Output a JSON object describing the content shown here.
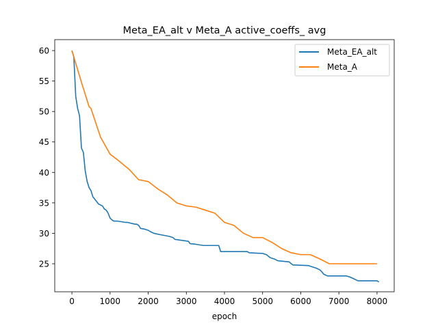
{
  "chart_data": {
    "type": "line",
    "title": "Meta_EA_alt v Meta_A active_coeffs_ avg",
    "xlabel": "epoch",
    "ylabel": "",
    "xlim": [
      -450,
      8450
    ],
    "ylim": [
      20.4,
      61.8
    ],
    "xticks": [
      0,
      1000,
      2000,
      3000,
      4000,
      5000,
      6000,
      7000,
      8000
    ],
    "yticks": [
      25,
      30,
      35,
      40,
      45,
      50,
      55,
      60
    ],
    "grid": false,
    "legend_position": "top-right",
    "series": [
      {
        "name": "Meta_EA_alt",
        "color": "#1f77b4",
        "x": [
          0,
          50,
          100,
          150,
          200,
          250,
          300,
          350,
          400,
          450,
          500,
          550,
          600,
          650,
          700,
          800,
          850,
          900,
          950,
          1000,
          1050,
          1100,
          1200,
          1400,
          1450,
          1650,
          1700,
          1750,
          1800,
          1900,
          2000,
          2050,
          2150,
          2300,
          2550,
          2650,
          2700,
          3050,
          3100,
          3250,
          3450,
          3550,
          3800,
          3850,
          3900,
          4600,
          4650,
          5000,
          5100,
          5200,
          5300,
          5400,
          5700,
          5750,
          5800,
          5850,
          6200,
          6300,
          6400,
          6500,
          6550,
          6600,
          6700,
          6750,
          7100,
          7200,
          7300,
          7400,
          7500,
          7600,
          8000,
          8050
        ],
        "y": [
          60,
          59,
          52.5,
          50.5,
          49.3,
          44,
          43.3,
          40.2,
          38.5,
          37.5,
          37,
          36,
          35.6,
          35.2,
          34.8,
          34.5,
          34,
          33.8,
          33.3,
          32.5,
          32.2,
          32,
          32,
          31.8,
          31.8,
          31.5,
          31.5,
          31.3,
          30.8,
          30.7,
          30.5,
          30.3,
          30,
          29.8,
          29.5,
          29.3,
          29,
          28.7,
          28.3,
          28.2,
          28,
          28,
          28,
          28,
          27,
          27,
          26.8,
          26.7,
          26.5,
          26,
          25.8,
          25.5,
          25.3,
          25,
          24.8,
          24.8,
          24.7,
          24.5,
          24.3,
          24,
          23.7,
          23.3,
          23,
          23,
          23,
          23,
          22.8,
          22.5,
          22.2,
          22.2,
          22.2,
          22
        ]
      },
      {
        "name": "Meta_A",
        "color": "#ff7f0e",
        "x": [
          0,
          250,
          450,
          500,
          750,
          1000,
          1250,
          1500,
          1750,
          2000,
          2250,
          2500,
          2750,
          3000,
          3250,
          3500,
          3750,
          4000,
          4250,
          4500,
          4750,
          5000,
          5250,
          5500,
          5750,
          6000,
          6250,
          6500,
          6750,
          7000,
          7250,
          7500,
          7750,
          8000
        ],
        "y": [
          60,
          54.8,
          50.8,
          50.5,
          45.8,
          43,
          41.8,
          40.5,
          38.8,
          38.5,
          37.3,
          36.3,
          35,
          34.5,
          34.3,
          33.8,
          33.3,
          31.8,
          31.3,
          30,
          29.3,
          29.3,
          28.5,
          27.5,
          26.8,
          26.5,
          26.5,
          25.8,
          25,
          25,
          25,
          25,
          25,
          25
        ]
      }
    ]
  }
}
